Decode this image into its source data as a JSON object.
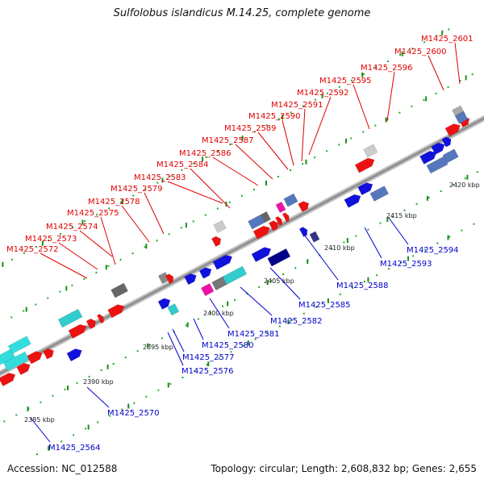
{
  "title": "Sulfolobus islandicus M.14.25, complete genome",
  "footer": {
    "accession": "Accession: NC_012588",
    "summary": "Topology: circular; Length: 2,608,832 bp; Genes: 2,655"
  },
  "colors": {
    "top_labels": "#e00000",
    "bottom_labels": "#0000cc",
    "backbone": "#909090",
    "grid_dots": "#22aa22"
  },
  "scale_labels": [
    "2385 kbp",
    "2390 kbp",
    "2395 kbp",
    "2400 kbp",
    "2405 kbp",
    "2410 kbp",
    "2415 kbp",
    "2420 kbp"
  ],
  "top_labels": [
    "M1425_2572",
    "M1425_2573",
    "M1425_2574",
    "M1425_2575",
    "M1425_2578",
    "M1425_2579",
    "M1425_2583",
    "M1425_2584",
    "M1425_2586",
    "M1425_2587",
    "M1425_2589",
    "M1425_2590",
    "M1425_2591",
    "M1425_2592",
    "M1425_2595",
    "M1425_2596",
    "M1425_2600",
    "M1425_2601"
  ],
  "bottom_labels": [
    "M1425_2564",
    "M1425_2570",
    "M1425_2576",
    "M1425_2577",
    "M1425_2580",
    "M1425_2581",
    "M1425_2582",
    "M1425_2585",
    "M1425_2588",
    "M1425_2593",
    "M1425_2594"
  ]
}
